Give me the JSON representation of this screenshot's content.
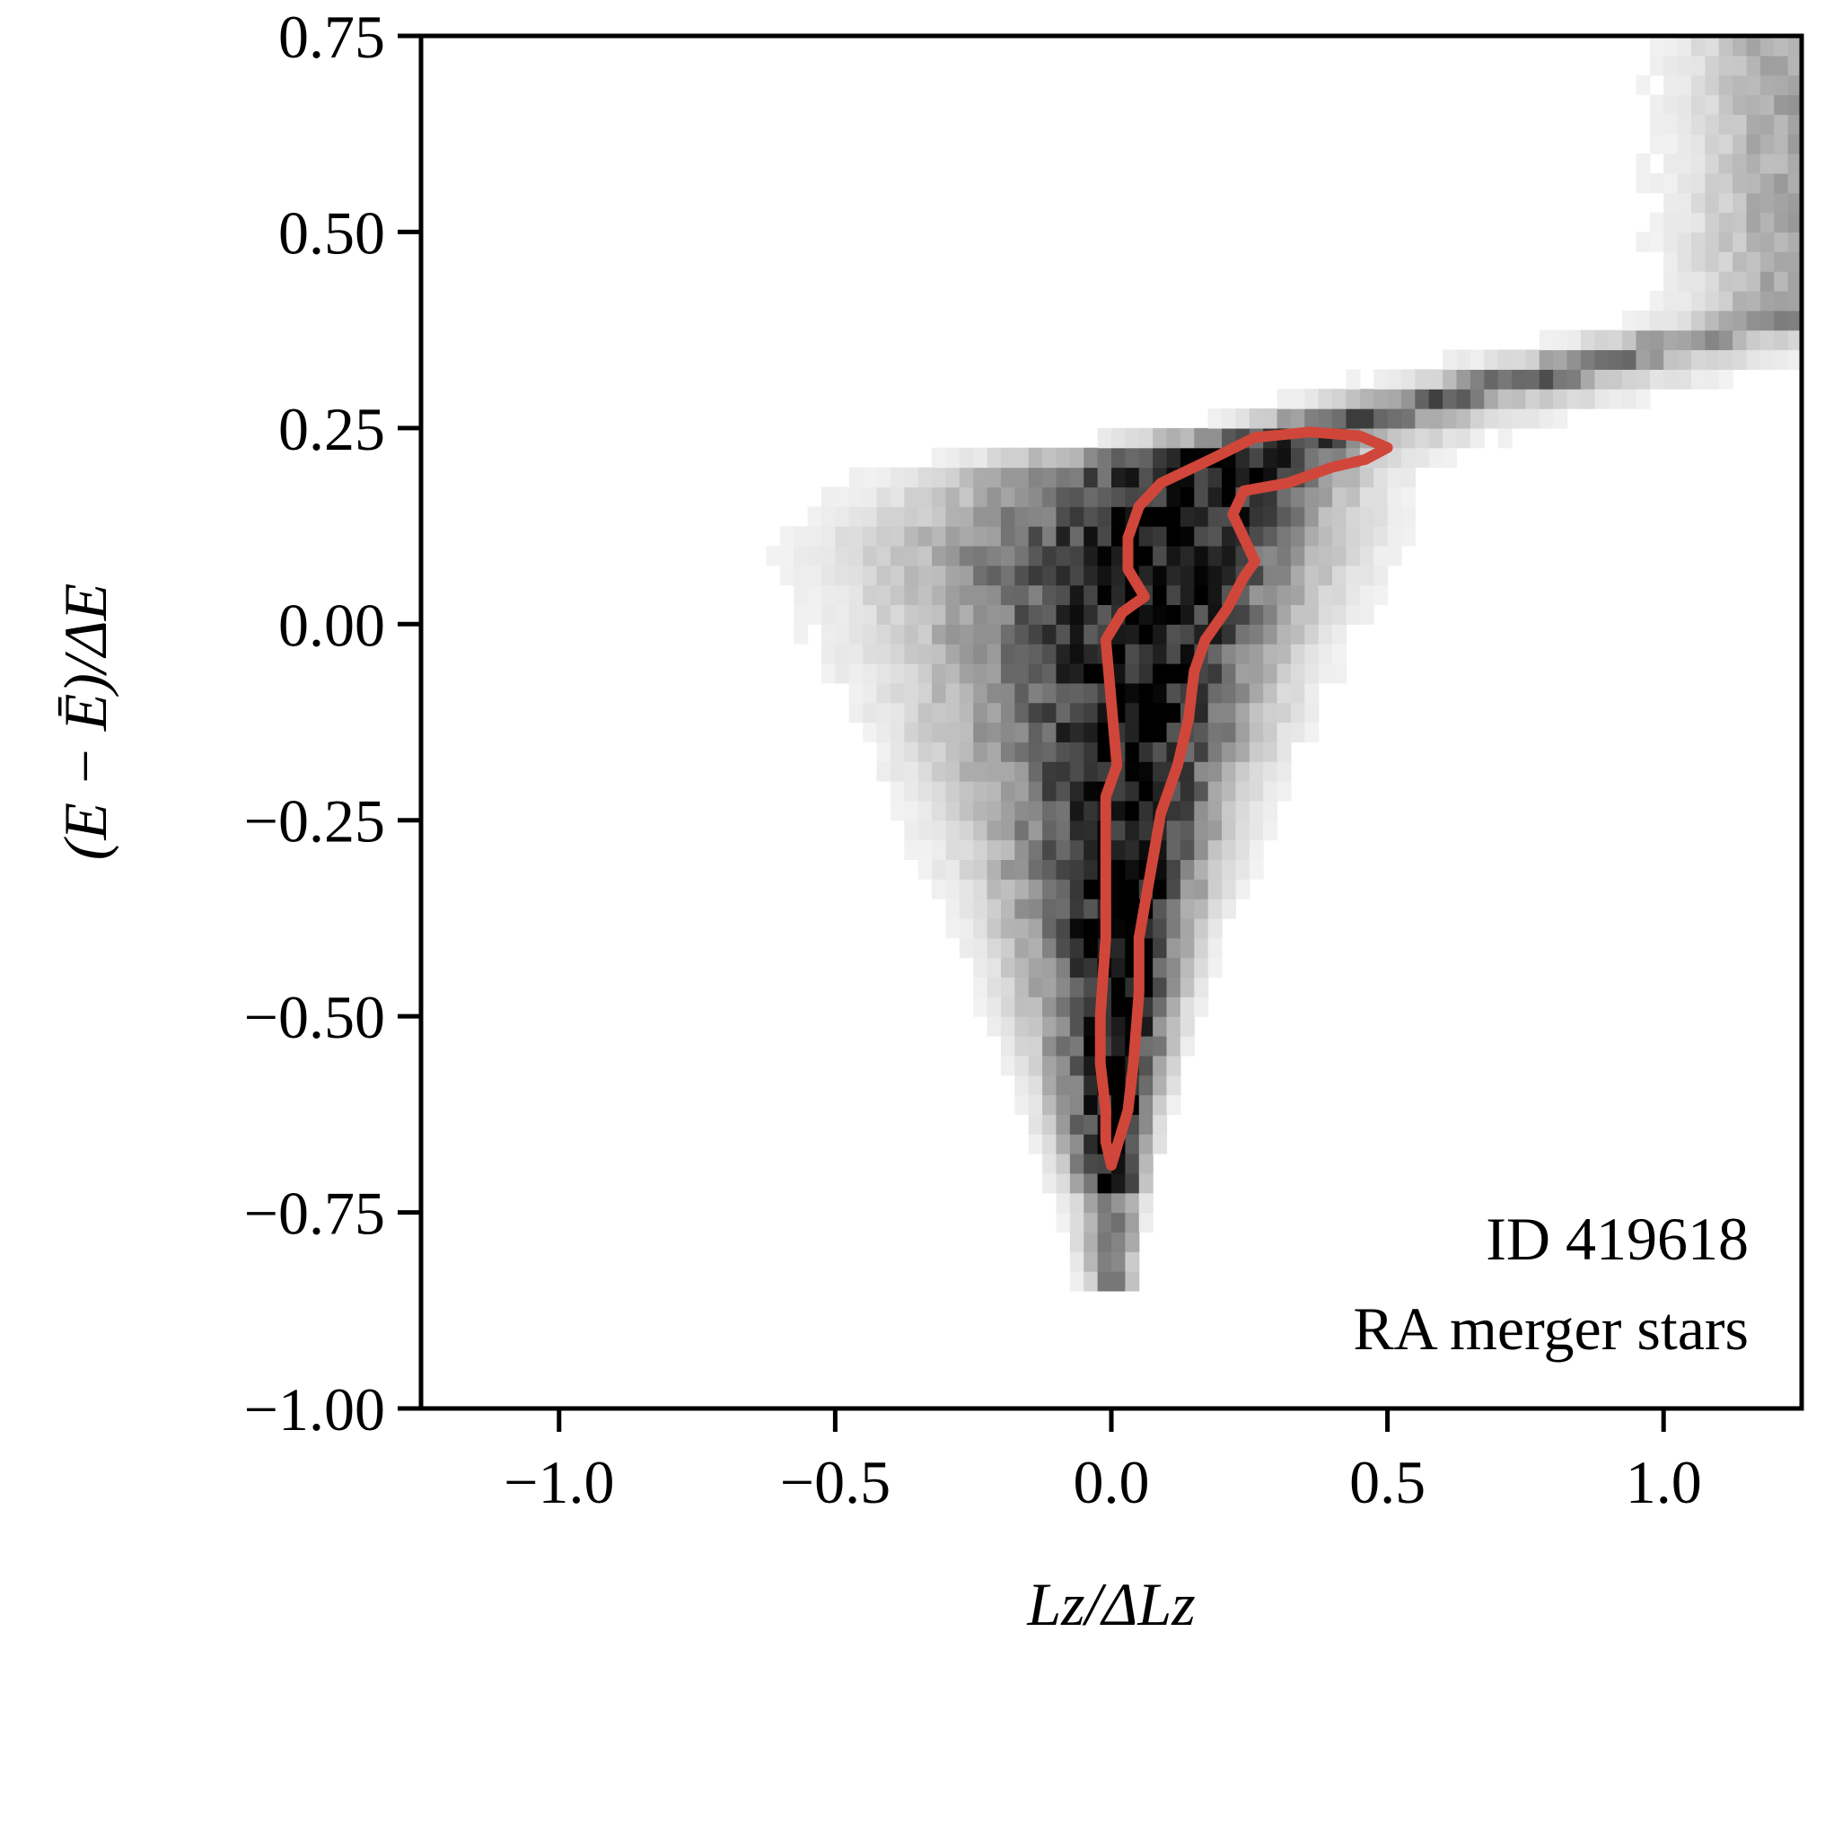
{
  "chart_data": {
    "type": "heatmap",
    "xlabel": "Lz/ΔLz",
    "ylabel": "(E − Ē)/ΔE",
    "xlim": [
      -1.25,
      1.25
    ],
    "ylim": [
      -1.0,
      0.75
    ],
    "xticks": [
      -1.0,
      -0.5,
      0.0,
      0.5,
      1.0
    ],
    "xtick_labels": [
      "−1.0",
      "−0.5",
      "0.0",
      "0.5",
      "1.0"
    ],
    "yticks": [
      0.75,
      0.5,
      0.25,
      0.0,
      -0.25,
      -0.5,
      -0.75,
      -1.0
    ],
    "ytick_labels": [
      "0.75",
      "0.50",
      "0.25",
      "0.00",
      "−0.25",
      "−0.50",
      "−0.75",
      "−1.00"
    ],
    "annotations": [
      "ID 419618",
      "RA merger stars"
    ],
    "colormap": "greys",
    "contour_color": "#d1463a",
    "density_ridge": [
      {
        "y": -0.83,
        "x": 0.01,
        "width": 0.02
      },
      {
        "y": -0.7,
        "x": 0.01,
        "width": 0.03
      },
      {
        "y": -0.55,
        "x": 0.02,
        "width": 0.05
      },
      {
        "y": -0.4,
        "x": 0.03,
        "width": 0.07
      },
      {
        "y": -0.25,
        "x": 0.05,
        "width": 0.1
      },
      {
        "y": -0.1,
        "x": 0.07,
        "width": 0.13
      },
      {
        "y": 0.0,
        "x": 0.09,
        "width": 0.15
      },
      {
        "y": 0.1,
        "x": 0.12,
        "width": 0.17
      },
      {
        "y": 0.2,
        "x": 0.2,
        "width": 0.15
      },
      {
        "y": 0.25,
        "x": 0.4,
        "width": 0.07
      },
      {
        "y": 0.3,
        "x": 0.7,
        "width": 0.07
      },
      {
        "y": 0.35,
        "x": 1.0,
        "width": 0.07
      },
      {
        "y": 0.39,
        "x": 1.24,
        "width": 0.07
      }
    ],
    "contour": [
      [
        0.0,
        -0.69
      ],
      [
        0.03,
        -0.62
      ],
      [
        0.04,
        -0.56
      ],
      [
        0.05,
        -0.47
      ],
      [
        0.05,
        -0.4
      ],
      [
        0.07,
        -0.32
      ],
      [
        0.09,
        -0.24
      ],
      [
        0.12,
        -0.18
      ],
      [
        0.14,
        -0.12
      ],
      [
        0.15,
        -0.06
      ],
      [
        0.17,
        -0.02
      ],
      [
        0.21,
        0.02
      ],
      [
        0.24,
        0.06
      ],
      [
        0.26,
        0.08
      ],
      [
        0.24,
        0.11
      ],
      [
        0.22,
        0.14
      ],
      [
        0.24,
        0.17
      ],
      [
        0.32,
        0.18
      ],
      [
        0.4,
        0.2
      ],
      [
        0.46,
        0.21
      ],
      [
        0.5,
        0.225
      ],
      [
        0.45,
        0.24
      ],
      [
        0.36,
        0.245
      ],
      [
        0.26,
        0.238
      ],
      [
        0.18,
        0.21
      ],
      [
        0.09,
        0.18
      ],
      [
        0.05,
        0.15
      ],
      [
        0.03,
        0.11
      ],
      [
        0.03,
        0.07
      ],
      [
        0.06,
        0.035
      ],
      [
        0.04,
        0.025
      ],
      [
        0.02,
        0.015
      ],
      [
        -0.01,
        -0.02
      ],
      [
        0.0,
        -0.1
      ],
      [
        0.01,
        -0.18
      ],
      [
        -0.01,
        -0.22
      ],
      [
        -0.01,
        -0.3
      ],
      [
        -0.01,
        -0.4
      ],
      [
        -0.02,
        -0.5
      ],
      [
        -0.02,
        -0.56
      ],
      [
        -0.01,
        -0.62
      ],
      [
        -0.01,
        -0.66
      ],
      [
        0.0,
        -0.69
      ]
    ]
  }
}
